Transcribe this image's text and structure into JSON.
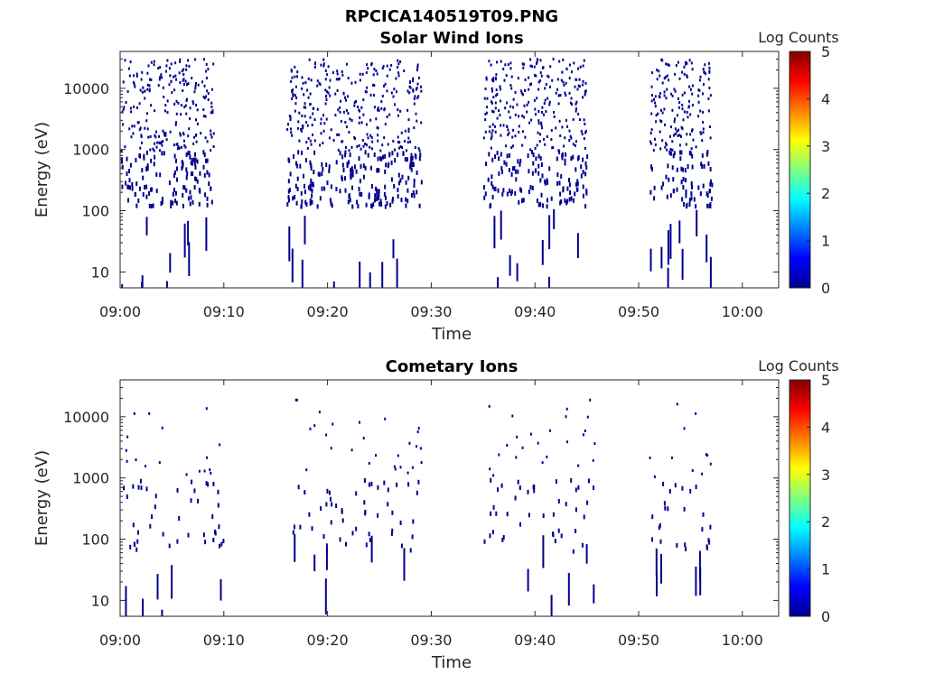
{
  "figure_title": "RPCICA140519T09.PNG",
  "colormap": [
    "#00008f",
    "#0000ff",
    "#0080ff",
    "#00ffff",
    "#80ff80",
    "#ffff00",
    "#ff8000",
    "#ff0000",
    "#800000"
  ],
  "chart_data": [
    {
      "type": "heatmap",
      "title": "Solar Wind Ions",
      "xlabel": "Time",
      "ylabel": "Energy (eV)",
      "colorbar_label": "Log Counts",
      "colorbar_ticks": [
        "0",
        "1",
        "2",
        "3",
        "4",
        "5"
      ],
      "clim": [
        0,
        5
      ],
      "x_ticks": [
        "09:00",
        "09:10",
        "09:20",
        "09:30",
        "09:40",
        "09:50",
        "10:00"
      ],
      "xlim_minutes": [
        0,
        63.5
      ],
      "y_scale": "log",
      "y_ticks": [
        "10",
        "100",
        "1000",
        "10000"
      ],
      "ylim": [
        5.5,
        40000
      ],
      "mark_color": "#00008f",
      "bursts": [
        {
          "start": "09:00",
          "end": "09:09"
        },
        {
          "start": "09:16",
          "end": "09:29"
        },
        {
          "start": "09:35",
          "end": "09:45"
        },
        {
          "start": "09:51",
          "end": "09:57"
        }
      ]
    },
    {
      "type": "heatmap",
      "title": "Cometary Ions",
      "xlabel": "Time",
      "ylabel": "Energy (eV)",
      "colorbar_label": "Log Counts",
      "colorbar_ticks": [
        "0",
        "1",
        "2",
        "3",
        "4",
        "5"
      ],
      "clim": [
        0,
        5
      ],
      "x_ticks": [
        "09:00",
        "09:10",
        "09:20",
        "09:30",
        "09:40",
        "09:50",
        "10:00"
      ],
      "xlim_minutes": [
        0,
        63.5
      ],
      "y_scale": "log",
      "y_ticks": [
        "10",
        "100",
        "1000",
        "10000"
      ],
      "ylim": [
        5.5,
        40000
      ],
      "mark_color": "#00008f",
      "bursts": [
        {
          "start": "09:00",
          "end": "09:10"
        },
        {
          "start": "09:16",
          "end": "09:29"
        },
        {
          "start": "09:35",
          "end": "09:46"
        },
        {
          "start": "09:51",
          "end": "09:57"
        }
      ]
    }
  ]
}
